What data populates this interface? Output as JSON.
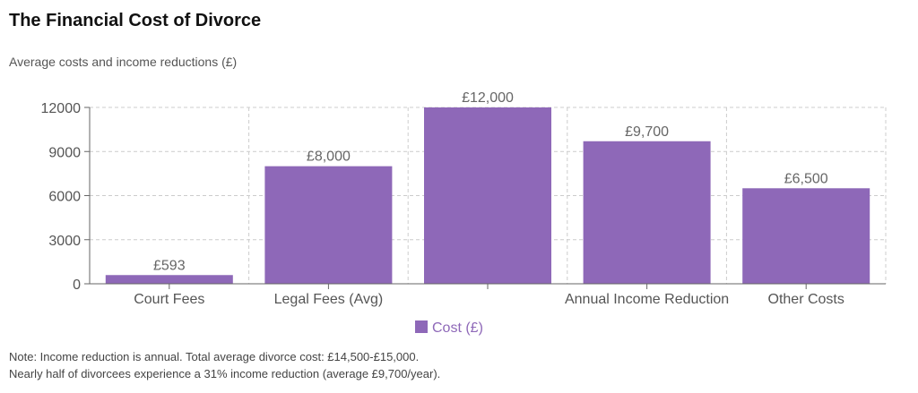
{
  "title": "The Financial Cost of Divorce",
  "subtitle": "Average costs and income reductions (£)",
  "notes": [
    "Note: Income reduction is annual. Total average divorce cost: £14,500-£15,000.",
    "Nearly half of divorcees experience a 31% income reduction (average £9,700/year)."
  ],
  "colors": {
    "bar": "#8e68b8",
    "grid": "#cccccc",
    "axis": "#666666",
    "text": "#555555"
  },
  "chart_data": {
    "type": "bar",
    "categories": [
      "Court Fees",
      "Legal Fees (Avg)",
      "",
      "Annual Income Reduction",
      "Other Costs"
    ],
    "series": [
      {
        "name": "Cost (£)",
        "values": [
          593,
          8000,
          12000,
          9700,
          6500
        ]
      }
    ],
    "data_labels": [
      "£593",
      "£8,000",
      "£12,000",
      "£9,700",
      "£6,500"
    ],
    "yticks": [
      0,
      3000,
      6000,
      9000,
      12000
    ],
    "ylim": [
      0,
      12000
    ],
    "grid": true,
    "legend": "bottom-center"
  }
}
